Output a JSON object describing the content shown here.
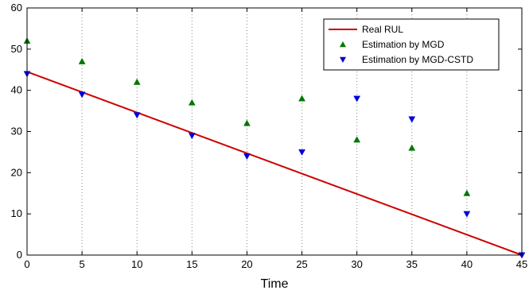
{
  "chart_data": {
    "type": "line",
    "xlabel": "Time",
    "ylabel": "",
    "xlim": [
      0,
      45
    ],
    "ylim": [
      0,
      60
    ],
    "x_ticks": [
      0,
      5,
      10,
      15,
      20,
      25,
      30,
      35,
      40,
      45
    ],
    "y_ticks": [
      0,
      10,
      20,
      30,
      40,
      50,
      60
    ],
    "x_tick_labels": [
      "0",
      "5",
      "10",
      "15",
      "20",
      "25",
      "30",
      "35",
      "40",
      "45"
    ],
    "y_tick_labels": [
      "0",
      "10",
      "20",
      "30",
      "40",
      "50",
      "60"
    ],
    "grid": "vertical dotted",
    "legend_position": "top-right",
    "series": [
      {
        "name": "Real RUL",
        "kind": "line",
        "color": "#cc0000",
        "x": [
          0,
          45
        ],
        "y": [
          44.5,
          0
        ]
      },
      {
        "name": "Estimation by MGD",
        "kind": "marker-triangle-up",
        "color": "#007700",
        "x": [
          0,
          5,
          10,
          15,
          20,
          25,
          30,
          35,
          40
        ],
        "y": [
          52,
          47,
          42,
          37,
          32,
          38,
          28,
          26,
          15
        ]
      },
      {
        "name": "Estimation by MGD-CSTD",
        "kind": "marker-triangle-down",
        "color": "#0000dd",
        "x": [
          0,
          5,
          10,
          15,
          20,
          25,
          30,
          35,
          40,
          45
        ],
        "y": [
          44,
          39,
          34,
          29,
          24,
          25,
          38,
          33,
          10,
          0
        ]
      }
    ]
  }
}
